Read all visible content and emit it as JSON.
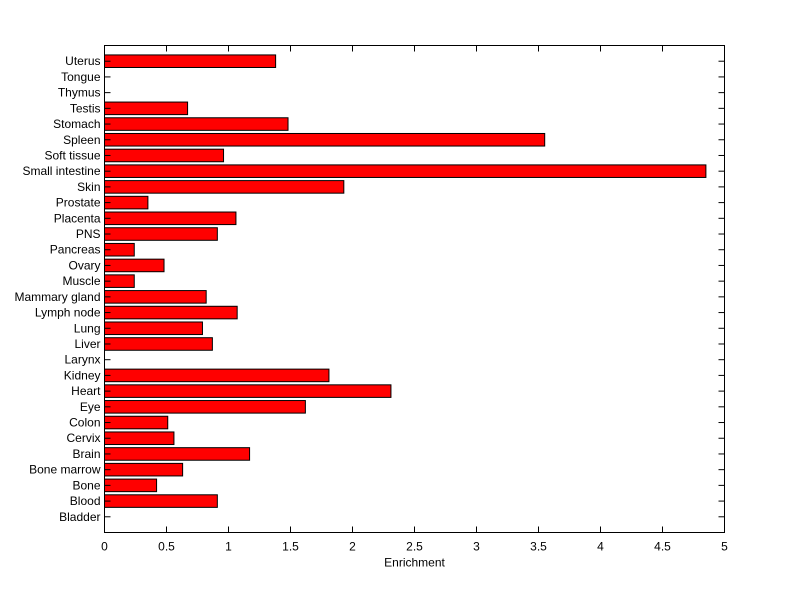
{
  "chart_data": {
    "type": "bar",
    "orientation": "horizontal",
    "xlabel": "Enrichment",
    "xlim": [
      0,
      5
    ],
    "x_ticks": [
      "0",
      "0.5",
      "1",
      "1.5",
      "2",
      "2.5",
      "3",
      "3.5",
      "4",
      "4.5",
      "5"
    ],
    "grid": false,
    "bar_color": "#ff0000",
    "bar_edge_color": "#000000",
    "categories": [
      "Bladder",
      "Blood",
      "Bone",
      "Bone marrow",
      "Brain",
      "Cervix",
      "Colon",
      "Eye",
      "Heart",
      "Kidney",
      "Larynx",
      "Liver",
      "Lung",
      "Lymph node",
      "Mammary gland",
      "Muscle",
      "Ovary",
      "Pancreas",
      "PNS",
      "Placenta",
      "Prostate",
      "Skin",
      "Small intestine",
      "Soft tissue",
      "Spleen",
      "Stomach",
      "Testis",
      "Thymus",
      "Tongue",
      "Uterus"
    ],
    "values": [
      0,
      0.91,
      0.42,
      0.63,
      1.17,
      0.56,
      0.51,
      1.62,
      2.31,
      1.81,
      0,
      0.87,
      0.79,
      1.07,
      0.82,
      0.24,
      0.48,
      0.24,
      0.91,
      1.06,
      0.35,
      1.93,
      4.85,
      0.96,
      3.55,
      1.48,
      0.67,
      0,
      0,
      1.38
    ]
  }
}
